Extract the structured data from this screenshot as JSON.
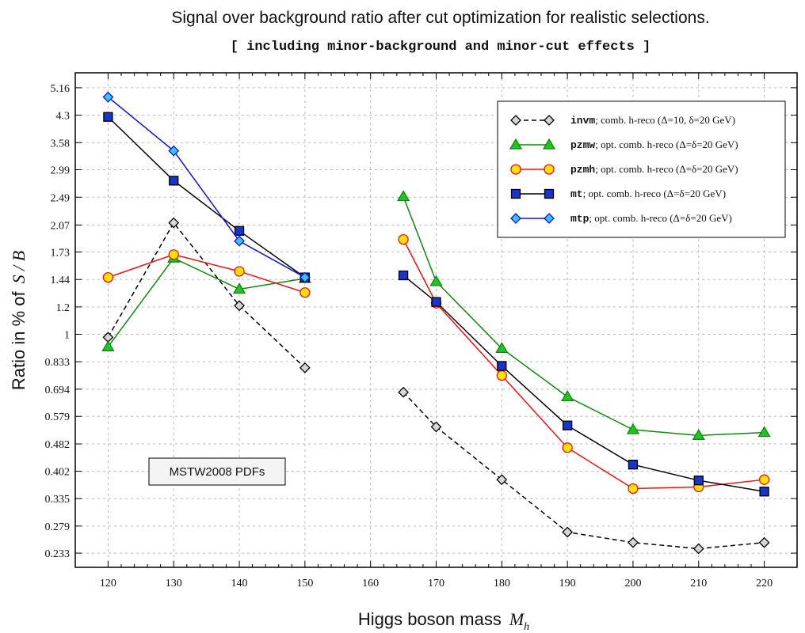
{
  "chart_data": {
    "type": "line",
    "title": "Signal over background ratio after cut optimization for realistic selections.",
    "subtitle": "[ including minor-background and minor-cut effects ]",
    "xlabel": "Higgs boson mass",
    "xlabel_symbol": "M",
    "xlabel_subscript": "h",
    "ylabel": "Ratio in % of",
    "ylabel_symbol": "S / B",
    "x_ticks": [
      "120",
      "130",
      "140",
      "150",
      "160",
      "170",
      "180",
      "190",
      "200",
      "210",
      "220"
    ],
    "y_ticks": [
      "0.233",
      "0.279",
      "0.335",
      "0.402",
      "0.482",
      "0.579",
      "0.694",
      "0.833",
      "1",
      "1.2",
      "1.44",
      "1.73",
      "2.07",
      "2.49",
      "2.99",
      "3.58",
      "4.3",
      "5.16"
    ],
    "y_scale": "log",
    "xlim": [
      115,
      225
    ],
    "ylim": [
      0.212,
      5.7
    ],
    "grid": true,
    "legend_position": "top-right",
    "annotation": "MSTW2008 PDFs",
    "series": [
      {
        "name": "invm",
        "description": "comb. h-reco (Δ=10, δ=20 GeV)",
        "color": "#000000",
        "fill": "#d6d6d6",
        "marker": "diamond",
        "dashed": true,
        "segments": [
          {
            "x": [
              120,
              130,
              140,
              150
            ],
            "y": [
              0.98,
              2.1,
              1.21,
              0.8
            ]
          },
          {
            "x": [
              165,
              170,
              180,
              190,
              200,
              210,
              220
            ],
            "y": [
              0.68,
              0.54,
              0.38,
              0.268,
              0.25,
              0.24,
              0.25
            ]
          }
        ]
      },
      {
        "name": "pzmw",
        "description": "opt. comb. h-reco (Δ=δ=20 GeV)",
        "color": "#0b8a0b",
        "fill": "#22c322",
        "marker": "triangle",
        "dashed": false,
        "segments": [
          {
            "x": [
              120,
              130,
              140,
              150
            ],
            "y": [
              0.92,
              1.66,
              1.35,
              1.45
            ]
          },
          {
            "x": [
              165,
              170,
              180,
              190,
              200,
              210,
              220
            ],
            "y": [
              2.5,
              1.42,
              0.91,
              0.66,
              0.53,
              0.51,
              0.52
            ]
          }
        ]
      },
      {
        "name": "pzmh",
        "description": "opt. comb. h-reco (Δ=δ=20 GeV)",
        "color": "#ee1111",
        "fill": "#ffe200",
        "marker": "circle",
        "dashed": false,
        "segments": [
          {
            "x": [
              120,
              130,
              140,
              150
            ],
            "y": [
              1.46,
              1.7,
              1.52,
              1.32
            ]
          },
          {
            "x": [
              165,
              170,
              180,
              190,
              200,
              210,
              220
            ],
            "y": [
              1.88,
              1.23,
              0.76,
              0.47,
              0.358,
              0.362,
              0.38
            ]
          }
        ]
      },
      {
        "name": "mt",
        "description": "opt. comb. h-reco (Δ=δ=20 GeV)",
        "color": "#000000",
        "fill": "#1a33cc",
        "marker": "square",
        "dashed": false,
        "segments": [
          {
            "x": [
              120,
              130,
              140,
              150
            ],
            "y": [
              4.25,
              2.78,
              1.99,
              1.46
            ]
          },
          {
            "x": [
              165,
              170,
              180,
              190,
              200,
              210,
              220
            ],
            "y": [
              1.48,
              1.24,
              0.81,
              0.545,
              0.42,
              0.378,
              0.351
            ]
          }
        ]
      },
      {
        "name": "mtp",
        "description": "opt. comb. h-reco (Δ=δ=20 GeV)",
        "color": "#1010dd",
        "fill": "#33c6ff",
        "marker": "diamond",
        "dashed": false,
        "segments": [
          {
            "x": [
              120,
              130,
              140,
              150
            ],
            "y": [
              4.85,
              3.39,
              1.86,
              1.46
            ]
          }
        ]
      }
    ]
  }
}
